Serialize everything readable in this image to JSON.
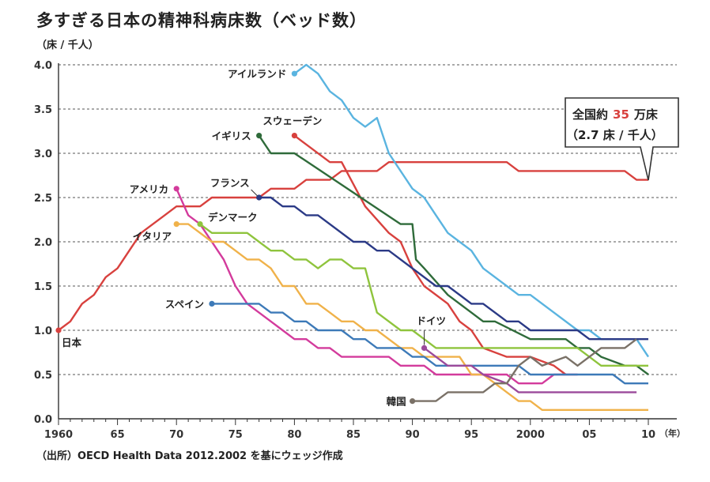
{
  "title": "多すぎる日本の精神科病床数（ベッド数）",
  "unit": "（床 / 千人）",
  "source": "（出所）OECD Health Data 2012.2002 を基にウェッジ作成",
  "callout": {
    "line1_a": "全国約",
    "line1_num": "35",
    "line1_b": "万床",
    "line2": "（2.7 床 / 千人）",
    "num_color": "#d8413e"
  },
  "chart_data": {
    "type": "line",
    "xlim": [
      1960,
      2010
    ],
    "ylim": [
      0,
      4.0
    ],
    "yticks": [
      "0.0",
      "0.5",
      "1.0",
      "1.5",
      "2.0",
      "2.5",
      "3.0",
      "3.5",
      "4.0"
    ],
    "xticks": [
      {
        "v": 1960,
        "label": "1960"
      },
      {
        "v": 1965,
        "label": "65"
      },
      {
        "v": 1970,
        "label": "70"
      },
      {
        "v": 1975,
        "label": "75"
      },
      {
        "v": 1980,
        "label": "80"
      },
      {
        "v": 1985,
        "label": "85"
      },
      {
        "v": 1990,
        "label": "90"
      },
      {
        "v": 1995,
        "label": "95"
      },
      {
        "v": 2000,
        "label": "2000"
      },
      {
        "v": 2005,
        "label": "05"
      },
      {
        "v": 2010,
        "label": "10"
      }
    ],
    "xunit": "（年）",
    "grid": "dashed-horizontal",
    "series": [
      {
        "name": "日本",
        "color": "#d8413e",
        "points": [
          [
            1960,
            1.0
          ],
          [
            1961,
            1.1
          ],
          [
            1962,
            1.3
          ],
          [
            1963,
            1.4
          ],
          [
            1964,
            1.6
          ],
          [
            1965,
            1.7
          ],
          [
            1966,
            1.9
          ],
          [
            1967,
            2.1
          ],
          [
            1968,
            2.2
          ],
          [
            1969,
            2.3
          ],
          [
            1970,
            2.4
          ],
          [
            1972,
            2.4
          ],
          [
            1973,
            2.5
          ],
          [
            1977,
            2.5
          ],
          [
            1978,
            2.6
          ],
          [
            1980,
            2.6
          ],
          [
            1981,
            2.7
          ],
          [
            1983,
            2.7
          ],
          [
            1984,
            2.8
          ],
          [
            1987,
            2.8
          ],
          [
            1988,
            2.9
          ],
          [
            1998,
            2.9
          ],
          [
            1999,
            2.8
          ],
          [
            2008,
            2.8
          ],
          [
            2009,
            2.7
          ],
          [
            2010,
            2.7
          ]
        ]
      },
      {
        "name": "アイルランド",
        "color": "#5ab4e0",
        "points": [
          [
            1980,
            3.9
          ],
          [
            1981,
            4.0
          ],
          [
            1982,
            3.9
          ],
          [
            1983,
            3.7
          ],
          [
            1984,
            3.6
          ],
          [
            1985,
            3.4
          ],
          [
            1986,
            3.3
          ],
          [
            1987,
            3.4
          ],
          [
            1988,
            3.0
          ],
          [
            1989,
            2.8
          ],
          [
            1990,
            2.6
          ],
          [
            1991,
            2.5
          ],
          [
            1992,
            2.3
          ],
          [
            1993,
            2.1
          ],
          [
            1994,
            2.0
          ],
          [
            1995,
            1.9
          ],
          [
            1996,
            1.7
          ],
          [
            1998,
            1.5
          ],
          [
            1999,
            1.4
          ],
          [
            2000,
            1.4
          ],
          [
            2002,
            1.2
          ],
          [
            2004,
            1.0
          ],
          [
            2005,
            1.0
          ],
          [
            2006,
            0.9
          ],
          [
            2009,
            0.9
          ],
          [
            2010,
            0.7
          ]
        ]
      },
      {
        "name": "スウェーデン",
        "color": "#d8413e",
        "points": [
          [
            1980,
            3.2
          ],
          [
            1981,
            3.1
          ],
          [
            1983,
            2.9
          ],
          [
            1984,
            2.9
          ],
          [
            1986,
            2.4
          ],
          [
            1988,
            2.1
          ],
          [
            1989,
            2.0
          ],
          [
            1990,
            1.7
          ],
          [
            1991,
            1.5
          ],
          [
            1993,
            1.3
          ],
          [
            1994,
            1.1
          ],
          [
            1995,
            1.0
          ],
          [
            1996,
            0.8
          ],
          [
            1998,
            0.7
          ],
          [
            2000,
            0.7
          ],
          [
            2002,
            0.6
          ],
          [
            2003,
            0.5
          ]
        ]
      },
      {
        "name": "イギリス",
        "color": "#2f6b3a",
        "points": [
          [
            1977,
            3.2
          ],
          [
            1978,
            3.0
          ],
          [
            1980,
            3.0
          ],
          [
            1989,
            2.2
          ],
          [
            1990,
            2.2
          ],
          [
            1990.3,
            1.8
          ],
          [
            1991,
            1.7
          ],
          [
            1993,
            1.4
          ],
          [
            1995,
            1.2
          ],
          [
            1996,
            1.1
          ],
          [
            1997,
            1.1
          ],
          [
            2000,
            0.9
          ],
          [
            2003,
            0.9
          ],
          [
            2004,
            0.8
          ],
          [
            2005,
            0.8
          ],
          [
            2006,
            0.7
          ],
          [
            2008,
            0.6
          ],
          [
            2009,
            0.6
          ],
          [
            2010,
            0.5
          ]
        ]
      },
      {
        "name": "フランス",
        "color": "#2b3a86",
        "points": [
          [
            1977,
            2.5
          ],
          [
            1978,
            2.5
          ],
          [
            1979,
            2.4
          ],
          [
            1980,
            2.4
          ],
          [
            1981,
            2.3
          ],
          [
            1982,
            2.3
          ],
          [
            1985,
            2.0
          ],
          [
            1986,
            2.0
          ],
          [
            1987,
            1.9
          ],
          [
            1988,
            1.9
          ],
          [
            1992,
            1.5
          ],
          [
            1993,
            1.5
          ],
          [
            1995,
            1.3
          ],
          [
            1996,
            1.3
          ],
          [
            1998,
            1.1
          ],
          [
            1999,
            1.1
          ],
          [
            2000,
            1.0
          ],
          [
            2004,
            1.0
          ],
          [
            2005,
            0.9
          ],
          [
            2010,
            0.9
          ]
        ]
      },
      {
        "name": "アメリカ",
        "color": "#d33b9c",
        "points": [
          [
            1970,
            2.6
          ],
          [
            1971,
            2.3
          ],
          [
            1972,
            2.2
          ],
          [
            1974,
            1.8
          ],
          [
            1975,
            1.5
          ],
          [
            1976,
            1.3
          ],
          [
            1977,
            1.2
          ],
          [
            1978,
            1.1
          ],
          [
            1979,
            1.0
          ],
          [
            1980,
            0.9
          ],
          [
            1981,
            0.9
          ],
          [
            1982,
            0.8
          ],
          [
            1983,
            0.8
          ],
          [
            1984,
            0.7
          ],
          [
            1988,
            0.7
          ],
          [
            1989,
            0.6
          ],
          [
            1991,
            0.6
          ],
          [
            1992,
            0.5
          ],
          [
            1998,
            0.5
          ],
          [
            1999,
            0.4
          ],
          [
            2001,
            0.4
          ],
          [
            2002,
            0.5
          ],
          [
            2004,
            0.5
          ]
        ]
      },
      {
        "name": "デンマーク",
        "color": "#8fc43d",
        "points": [
          [
            1972,
            2.2
          ],
          [
            1973,
            2.1
          ],
          [
            1976,
            2.1
          ],
          [
            1977,
            2.0
          ],
          [
            1978,
            1.9
          ],
          [
            1979,
            1.9
          ],
          [
            1980,
            1.8
          ],
          [
            1981,
            1.8
          ],
          [
            1982,
            1.7
          ],
          [
            1983,
            1.8
          ],
          [
            1984,
            1.8
          ],
          [
            1985,
            1.7
          ],
          [
            1986,
            1.7
          ],
          [
            1987,
            1.2
          ],
          [
            1989,
            1.0
          ],
          [
            1990,
            1.0
          ],
          [
            1991,
            0.9
          ],
          [
            1992,
            0.8
          ],
          [
            2004,
            0.8
          ],
          [
            2005,
            0.7
          ],
          [
            2006,
            0.6
          ],
          [
            2010,
            0.6
          ]
        ]
      },
      {
        "name": "イタリア",
        "color": "#f0b24a",
        "points": [
          [
            1970,
            2.2
          ],
          [
            1971,
            2.2
          ],
          [
            1973,
            2.0
          ],
          [
            1974,
            2.0
          ],
          [
            1975,
            1.9
          ],
          [
            1976,
            1.8
          ],
          [
            1977,
            1.8
          ],
          [
            1978,
            1.7
          ],
          [
            1979,
            1.5
          ],
          [
            1980,
            1.5
          ],
          [
            1981,
            1.3
          ],
          [
            1982,
            1.3
          ],
          [
            1983,
            1.2
          ],
          [
            1984,
            1.1
          ],
          [
            1985,
            1.1
          ],
          [
            1986,
            1.0
          ],
          [
            1987,
            1.0
          ],
          [
            1989,
            0.8
          ],
          [
            1990,
            0.8
          ],
          [
            1991,
            0.7
          ],
          [
            1994,
            0.7
          ],
          [
            1995,
            0.5
          ],
          [
            1996,
            0.5
          ],
          [
            1997,
            0.4
          ],
          [
            1998,
            0.3
          ],
          [
            1999,
            0.2
          ],
          [
            2000,
            0.2
          ],
          [
            2001,
            0.1
          ],
          [
            2010,
            0.1
          ]
        ]
      },
      {
        "name": "スペイン",
        "color": "#3d7ab8",
        "points": [
          [
            1973,
            1.3
          ],
          [
            1977,
            1.3
          ],
          [
            1978,
            1.2
          ],
          [
            1979,
            1.2
          ],
          [
            1980,
            1.1
          ],
          [
            1981,
            1.1
          ],
          [
            1982,
            1.0
          ],
          [
            1984,
            1.0
          ],
          [
            1985,
            0.9
          ],
          [
            1986,
            0.9
          ],
          [
            1987,
            0.8
          ],
          [
            1989,
            0.8
          ],
          [
            1990,
            0.7
          ],
          [
            1991,
            0.7
          ],
          [
            1992,
            0.6
          ],
          [
            1999,
            0.6
          ],
          [
            2000,
            0.5
          ],
          [
            2007,
            0.5
          ],
          [
            2008,
            0.4
          ],
          [
            2010,
            0.4
          ]
        ]
      },
      {
        "name": "ドイツ",
        "color": "#9b4a9b",
        "points": [
          [
            1991,
            0.8
          ],
          [
            1992,
            0.7
          ],
          [
            1993,
            0.6
          ],
          [
            1995,
            0.6
          ],
          [
            1996,
            0.5
          ],
          [
            1998,
            0.4
          ],
          [
            1999,
            0.3
          ],
          [
            2009,
            0.3
          ]
        ]
      },
      {
        "name": "韓国",
        "color": "#7a7167",
        "points": [
          [
            1990,
            0.2
          ],
          [
            1992,
            0.2
          ],
          [
            1993,
            0.3
          ],
          [
            1996,
            0.3
          ],
          [
            1997,
            0.4
          ],
          [
            1998,
            0.4
          ],
          [
            1999,
            0.6
          ],
          [
            2000,
            0.7
          ],
          [
            2001,
            0.6
          ],
          [
            2003,
            0.7
          ],
          [
            2004,
            0.6
          ],
          [
            2005,
            0.7
          ],
          [
            2006,
            0.8
          ],
          [
            2008,
            0.8
          ],
          [
            2009,
            0.9
          ]
        ]
      }
    ]
  }
}
